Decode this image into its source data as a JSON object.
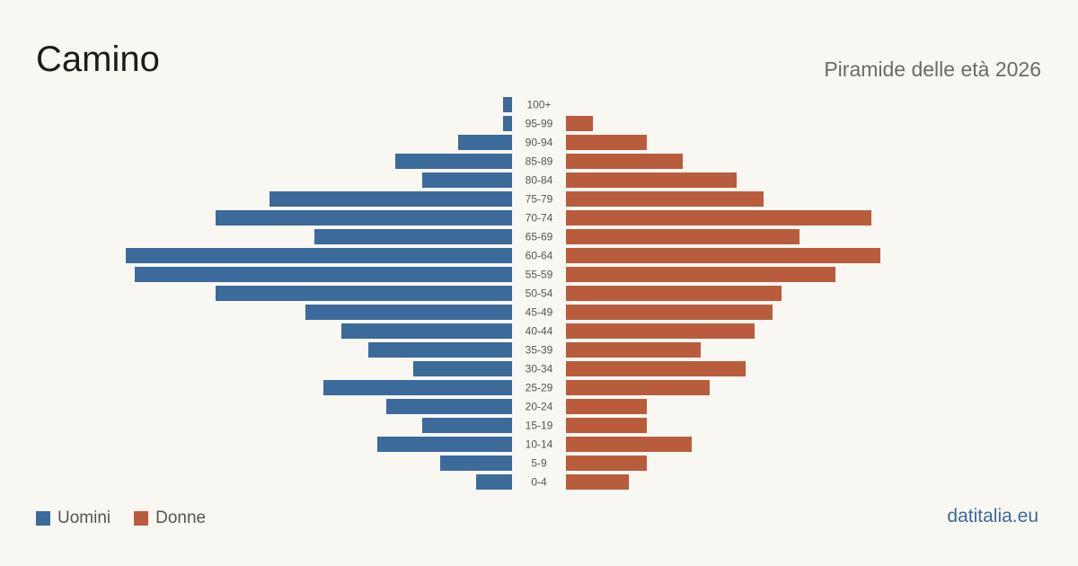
{
  "header": {
    "title": "Camino",
    "subtitle": "Piramide delle età 2026"
  },
  "legend": {
    "male_label": "Uomini",
    "female_label": "Donne"
  },
  "footer": {
    "brand": "datitalia.eu"
  },
  "colors": {
    "male": "#3c6a9b",
    "female": "#b95c3e",
    "background": "#f9f7f2"
  },
  "chart_data": {
    "type": "bar",
    "orientation": "horizontal-pyramid",
    "categories": [
      "100+",
      "95-99",
      "90-94",
      "85-89",
      "80-84",
      "75-79",
      "70-74",
      "65-69",
      "60-64",
      "55-59",
      "50-54",
      "45-49",
      "40-44",
      "35-39",
      "30-34",
      "25-29",
      "20-24",
      "15-19",
      "10-14",
      "5-9",
      "0-4"
    ],
    "series": [
      {
        "name": "Uomini",
        "values": [
          1,
          1,
          6,
          13,
          10,
          27,
          33,
          22,
          43,
          42,
          33,
          23,
          19,
          16,
          11,
          21,
          14,
          10,
          15,
          8,
          4
        ]
      },
      {
        "name": "Donne",
        "values": [
          0,
          3,
          9,
          13,
          19,
          22,
          34,
          26,
          35,
          30,
          24,
          23,
          21,
          15,
          20,
          16,
          9,
          9,
          14,
          9,
          7
        ]
      }
    ],
    "grid": false,
    "legend_position": "bottom-left"
  }
}
